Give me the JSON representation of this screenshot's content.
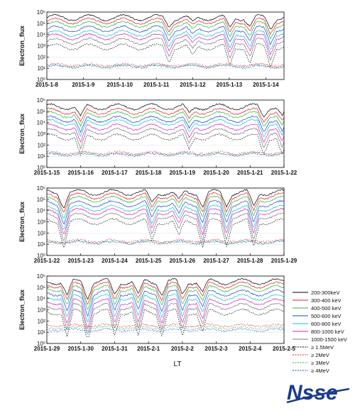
{
  "figure": {
    "x_axis_title": "LT",
    "logo_text": "Nsse"
  },
  "chart_data": [
    {
      "type": "line",
      "ylabel": "Electron_flux",
      "yscale": "log",
      "ylim": [
        1,
        1000000
      ],
      "yticks": [
        "10⁰",
        "10¹",
        "10²",
        "10³",
        "10⁴",
        "10⁵",
        "10⁶"
      ],
      "x_ticks": [
        "2015-1-8",
        "2015-1-9",
        "2015-1-10",
        "2015-1-11",
        "2015-1-12",
        "2015-1-13",
        "2015-1-14"
      ],
      "series_levels": [
        5.5,
        5.2,
        4.9,
        4.5,
        4.1,
        3.8,
        3.4,
        2.9,
        1.3,
        1.2,
        1.15
      ],
      "dips": [
        {
          "day": 3.6,
          "depth": 0.7
        },
        {
          "day": 4.3,
          "depth": 0.5
        },
        {
          "day": 5.4,
          "depth": 1.0
        },
        {
          "day": 6.0,
          "depth": 0.8
        },
        {
          "day": 6.6,
          "depth": 0.9
        }
      ]
    },
    {
      "type": "line",
      "ylabel": "Electron_flux",
      "yscale": "log",
      "ylim": [
        1,
        1000000
      ],
      "yticks": [
        "10⁰",
        "10¹",
        "10²",
        "10³",
        "10⁴",
        "10⁵",
        "10⁶"
      ],
      "x_ticks": [
        "2015-1-15",
        "2015-1-16",
        "2015-1-17",
        "2015-1-18",
        "2015-1-19",
        "2015-1-20",
        "2015-1-21",
        "2015-1-22"
      ],
      "series_levels": [
        5.4,
        5.0,
        4.7,
        4.3,
        4.0,
        3.6,
        3.2,
        2.7,
        1.3,
        1.2,
        1.15
      ],
      "dips": [
        {
          "day": 1.0,
          "depth": 1.0
        },
        {
          "day": 4.2,
          "depth": 0.7
        },
        {
          "day": 6.4,
          "depth": 0.8
        },
        {
          "day": 6.95,
          "depth": 0.9
        }
      ]
    },
    {
      "type": "line",
      "ylabel": "Electron_flux",
      "yscale": "log",
      "ylim": [
        1,
        1000000
      ],
      "yticks": [
        "10⁰",
        "10¹",
        "10²",
        "10³",
        "10⁴",
        "10⁵",
        "10⁶"
      ],
      "x_ticks": [
        "2015-1-22",
        "2015-1-23",
        "2015-1-24",
        "2015-1-25",
        "2015-1-26",
        "2015-1-27",
        "2015-1-28",
        "2015-1-29"
      ],
      "series_levels": [
        5.6,
        5.3,
        5.0,
        4.6,
        4.2,
        3.9,
        3.5,
        3.0,
        1.3,
        1.2,
        1.15
      ],
      "dips": [
        {
          "day": 0.5,
          "depth": 1.2
        },
        {
          "day": 3.1,
          "depth": 1.0
        },
        {
          "day": 3.9,
          "depth": 0.8
        },
        {
          "day": 4.6,
          "depth": 1.2
        },
        {
          "day": 5.3,
          "depth": 1.1
        },
        {
          "day": 6.1,
          "depth": 1.3
        }
      ]
    },
    {
      "type": "line",
      "ylabel": "Electron_flux",
      "yscale": "log",
      "ylim": [
        1,
        1000000
      ],
      "yticks": [
        "10⁰",
        "10¹",
        "10²",
        "10³",
        "10⁴",
        "10⁵",
        "10⁶"
      ],
      "x_ticks": [
        "2015-1-29",
        "2015-1-30",
        "2015-1-31",
        "2015-2-1",
        "2015-2-2",
        "2015-2-3",
        "2015-2-4",
        "2015-2-5"
      ],
      "series_levels": [
        5.5,
        5.2,
        4.9,
        4.5,
        4.1,
        3.7,
        3.3,
        2.8,
        1.6,
        1.4,
        1.2
      ],
      "dips": [
        {
          "day": 0.6,
          "depth": 1.3
        },
        {
          "day": 1.2,
          "depth": 1.4
        },
        {
          "day": 2.0,
          "depth": 1.2
        },
        {
          "day": 2.7,
          "depth": 1.3
        },
        {
          "day": 3.4,
          "depth": 1.1
        },
        {
          "day": 4.0,
          "depth": 1.2
        },
        {
          "day": 4.6,
          "depth": 1.0
        }
      ]
    }
  ],
  "legend": [
    {
      "label": "200-300keV",
      "color": "#000000",
      "dash": "solid"
    },
    {
      "label": "300-400 keV",
      "color": "#e8202a",
      "dash": "solid"
    },
    {
      "label": "400-500 keV",
      "color": "#27b83a",
      "dash": "solid"
    },
    {
      "label": "500-600 keV",
      "color": "#1f3fe0",
      "dash": "solid"
    },
    {
      "label": "600-800 keV",
      "color": "#12c3d2",
      "dash": "solid"
    },
    {
      "label": "800-1000 keV",
      "color": "#e020c0",
      "dash": "solid"
    },
    {
      "label": "1000-1500 keV",
      "color": "#7a7a7a",
      "dash": "solid"
    },
    {
      "label": "≥ 1.5MeV",
      "color": "#000000",
      "dash": "dotted"
    },
    {
      "label": "≥ 2MeV",
      "color": "#e8202a",
      "dash": "dotted"
    },
    {
      "label": "≥ 3MeV",
      "color": "#27b83a",
      "dash": "dotted"
    },
    {
      "label": "≥ 4MeV",
      "color": "#1f3fe0",
      "dash": "dotted"
    }
  ]
}
